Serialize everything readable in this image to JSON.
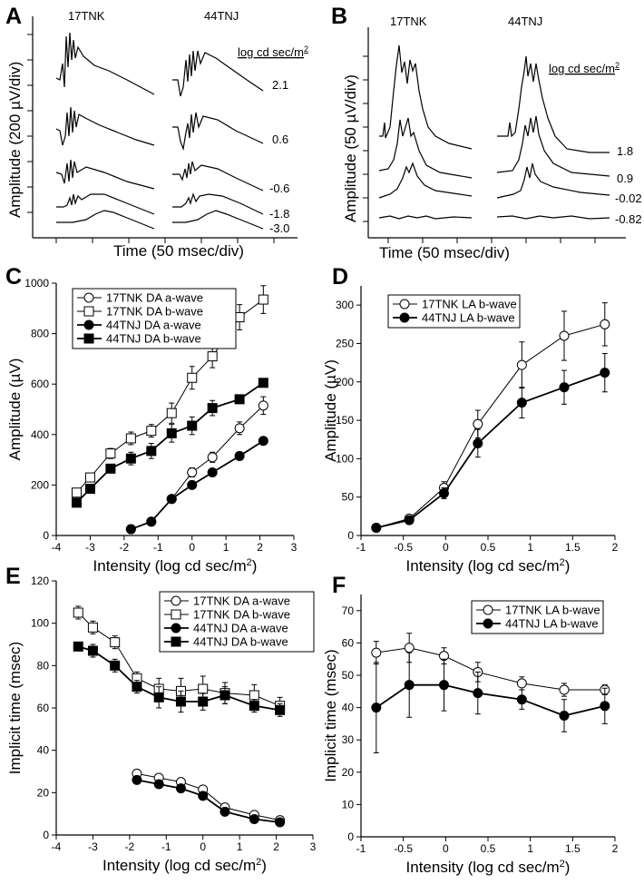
{
  "panels": {
    "A": {
      "label": "A",
      "strain1": "17TNK",
      "strain2": "44TNJ",
      "unit": "log cd sec/m",
      "unit_sup": "2",
      "ylabel": "Amplitude (200 µV/div)",
      "xlabel": "Time (50 msec/div)",
      "intensities": [
        "2.1",
        "0.6",
        "-0.6",
        "-1.8",
        "-3.0"
      ]
    },
    "B": {
      "label": "B",
      "strain1": "17TNK",
      "strain2": "44TNJ",
      "unit": "log cd sec/m",
      "unit_sup": "2",
      "ylabel": "Amplitude (50 µV/div)",
      "xlabel": "Time (50 msec/div)",
      "intensities": [
        "1.8",
        "0.9",
        "-0.02",
        "-0.82"
      ]
    }
  },
  "chart_data": [
    {
      "panel": "C",
      "type": "line",
      "xlabel": "Intensity (log cd sec/m",
      "xlabel_sup": "2",
      "xlabel_tail": ")",
      "ylabel": "Amplitude (µV)",
      "xlim": [
        -4,
        3
      ],
      "ylim": [
        0,
        1000
      ],
      "xticks": [
        -4,
        -3,
        -2,
        -1,
        0,
        1,
        2,
        3
      ],
      "yticks": [
        0,
        200,
        400,
        600,
        800,
        1000
      ],
      "legend_position": "top-left",
      "series": [
        {
          "name": "17TNK DA a-wave",
          "marker": "circle-open",
          "x": [
            -1.8,
            -1.2,
            -0.6,
            0,
            0.6,
            1.4,
            2.1
          ],
          "y": [
            25,
            55,
            145,
            250,
            310,
            425,
            515
          ],
          "err": [
            5,
            8,
            12,
            18,
            20,
            25,
            35
          ]
        },
        {
          "name": "17TNK DA b-wave",
          "marker": "square-open",
          "x": [
            -3.4,
            -3.0,
            -2.4,
            -1.8,
            -1.2,
            -0.6,
            0,
            0.6,
            1.4,
            2.1
          ],
          "y": [
            170,
            230,
            325,
            385,
            415,
            485,
            625,
            710,
            865,
            935
          ],
          "err": [
            15,
            15,
            20,
            25,
            25,
            40,
            45,
            45,
            50,
            55
          ]
        },
        {
          "name": "44TNJ DA a-wave",
          "marker": "circle-filled",
          "x": [
            -1.8,
            -1.2,
            -0.6,
            0,
            0.6,
            1.4,
            2.1
          ],
          "y": [
            25,
            55,
            145,
            200,
            250,
            315,
            375
          ],
          "err": [
            4,
            5,
            10,
            12,
            12,
            12,
            12
          ]
        },
        {
          "name": "44TNJ DA b-wave",
          "marker": "square-filled",
          "x": [
            -3.4,
            -3.0,
            -2.4,
            -1.8,
            -1.2,
            -0.6,
            0,
            0.6,
            1.4,
            2.1
          ],
          "y": [
            130,
            185,
            265,
            305,
            335,
            405,
            435,
            505,
            540,
            605
          ],
          "err": [
            10,
            12,
            15,
            25,
            30,
            35,
            35,
            30,
            15,
            15
          ]
        }
      ]
    },
    {
      "panel": "D",
      "type": "line",
      "xlabel": "Intensity (log cd sec/m",
      "xlabel_sup": "2",
      "xlabel_tail": ")",
      "ylabel": "Amplitude (µV)",
      "xlim": [
        -1,
        2
      ],
      "ylim": [
        0,
        325
      ],
      "xticks": [
        -1,
        -0.5,
        0,
        0.5,
        1,
        1.5,
        2
      ],
      "yticks": [
        0,
        50,
        100,
        150,
        200,
        250,
        300
      ],
      "legend_position": "top-left",
      "series": [
        {
          "name": "17TNK LA b-wave",
          "marker": "circle-open",
          "x": [
            -0.82,
            -0.43,
            -0.02,
            0.38,
            0.9,
            1.4,
            1.88
          ],
          "y": [
            10,
            22,
            62,
            145,
            222,
            260,
            275
          ],
          "err": [
            3,
            5,
            8,
            18,
            30,
            32,
            28
          ]
        },
        {
          "name": "44TNJ LA b-wave",
          "marker": "circle-filled",
          "x": [
            -0.82,
            -0.43,
            -0.02,
            0.38,
            0.9,
            1.4,
            1.88
          ],
          "y": [
            10,
            20,
            55,
            120,
            173,
            193,
            212
          ],
          "err": [
            2,
            4,
            7,
            18,
            20,
            22,
            25
          ]
        }
      ]
    },
    {
      "panel": "E",
      "type": "line",
      "xlabel": "Intensity (log cd sec/m",
      "xlabel_sup": "2",
      "xlabel_tail": ")",
      "ylabel": "Implicit time (msec)",
      "xlim": [
        -4,
        3
      ],
      "ylim": [
        0,
        120
      ],
      "xticks": [
        -4,
        -3,
        -2,
        -1,
        0,
        1,
        2,
        3
      ],
      "yticks": [
        0,
        20,
        40,
        60,
        80,
        100,
        120
      ],
      "legend_position": "top-right",
      "series": [
        {
          "name": "17TNK DA a-wave",
          "marker": "circle-open",
          "x": [
            -1.8,
            -1.2,
            -0.6,
            0,
            0.6,
            1.4,
            2.1
          ],
          "y": [
            29,
            27,
            25,
            21.5,
            13,
            9.5,
            7
          ],
          "err": [
            1.5,
            1.5,
            1.5,
            1.5,
            1.5,
            1,
            1
          ]
        },
        {
          "name": "17TNK DA b-wave",
          "marker": "square-open",
          "x": [
            -3.4,
            -3.0,
            -2.4,
            -1.8,
            -1.2,
            -0.6,
            0,
            0.6,
            1.4,
            2.1
          ],
          "y": [
            105,
            98,
            91,
            74,
            69,
            68,
            69,
            67,
            66,
            61
          ],
          "err": [
            3,
            3,
            3,
            3,
            5,
            6,
            6,
            5,
            5,
            4
          ]
        },
        {
          "name": "44TNJ DA a-wave",
          "marker": "circle-filled",
          "x": [
            -1.8,
            -1.2,
            -0.6,
            0,
            0.6,
            1.4,
            2.1
          ],
          "y": [
            26,
            24,
            22,
            18.5,
            11,
            7.5,
            6
          ],
          "err": [
            1.5,
            1.5,
            1.5,
            1.5,
            1.5,
            1,
            1
          ]
        },
        {
          "name": "44TNJ DA b-wave",
          "marker": "square-filled",
          "x": [
            -3.4,
            -3.0,
            -2.4,
            -1.8,
            -1.2,
            -0.6,
            0,
            0.6,
            1.4,
            2.1
          ],
          "y": [
            89,
            87,
            80,
            70,
            65,
            63,
            63,
            66,
            61,
            59
          ],
          "err": [
            2,
            3,
            3,
            3,
            5,
            5,
            4,
            4,
            3,
            3
          ]
        }
      ]
    },
    {
      "panel": "F",
      "type": "line",
      "xlabel": "Intensity (log cd sec/m",
      "xlabel_sup": "2",
      "xlabel_tail": ")",
      "ylabel": "Implicit time (msec)",
      "xlim": [
        -1,
        2
      ],
      "ylim": [
        0,
        75
      ],
      "xticks": [
        -1,
        -0.5,
        0,
        0.5,
        1,
        1.5,
        2
      ],
      "yticks": [
        0,
        10,
        20,
        30,
        40,
        50,
        60,
        70
      ],
      "legend_position": "top-right",
      "series": [
        {
          "name": "17TNK LA b-wave",
          "marker": "circle-open",
          "x": [
            -0.82,
            -0.43,
            -0.02,
            0.38,
            0.9,
            1.4,
            1.88
          ],
          "y": [
            57,
            58.5,
            56,
            51,
            47.5,
            45.5,
            45.5
          ],
          "err": [
            3.5,
            4.5,
            2.5,
            3,
            2,
            2,
            1.5
          ]
        },
        {
          "name": "44TNJ LA b-wave",
          "marker": "circle-filled",
          "x": [
            -0.82,
            -0.43,
            -0.02,
            0.38,
            0.9,
            1.4,
            1.88
          ],
          "y": [
            40,
            47,
            47,
            44.5,
            42.5,
            37.5,
            40.5
          ],
          "err": [
            14,
            10,
            8,
            6.5,
            3,
            5,
            5.5
          ]
        }
      ]
    }
  ]
}
